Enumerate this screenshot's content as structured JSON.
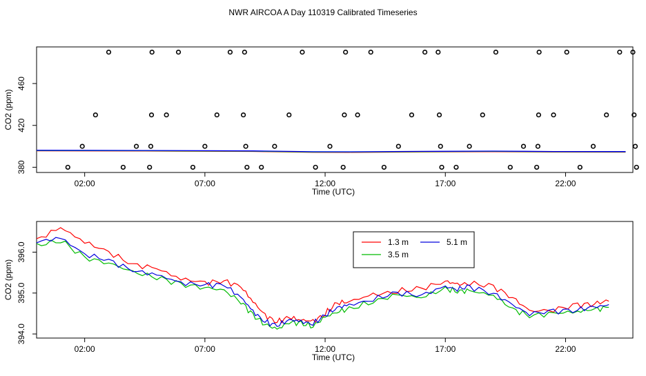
{
  "figure": {
    "title": "NWR AIRCOA A  Day 110319  Calibrated Timeseries"
  },
  "chart_data": [
    {
      "type": "scatter",
      "xlabel": "Time (UTC)",
      "ylabel": "CO2 (ppm)",
      "xlim": [
        0.0,
        24.8
      ],
      "ylim": [
        375,
        495
      ],
      "x_ticks": [
        2,
        7,
        12,
        17,
        22
      ],
      "x_tick_labels": [
        "02:00",
        "07:00",
        "12:00",
        "17:00",
        "22:00"
      ],
      "y_ticks": [
        380,
        420,
        460
      ],
      "y_tick_labels": [
        "380",
        "420",
        "460"
      ],
      "grid": false,
      "legend": "none",
      "points": [
        {
          "x": 1.3,
          "y": 380
        },
        {
          "x": 1.9,
          "y": 400
        },
        {
          "x": 2.45,
          "y": 430
        },
        {
          "x": 3.0,
          "y": 490
        },
        {
          "x": 3.6,
          "y": 380
        },
        {
          "x": 4.15,
          "y": 400
        },
        {
          "x": 4.7,
          "y": 380
        },
        {
          "x": 4.75,
          "y": 400
        },
        {
          "x": 4.78,
          "y": 430
        },
        {
          "x": 4.8,
          "y": 490
        },
        {
          "x": 5.4,
          "y": 430
        },
        {
          "x": 5.9,
          "y": 490
        },
        {
          "x": 6.5,
          "y": 380
        },
        {
          "x": 7.0,
          "y": 400
        },
        {
          "x": 7.5,
          "y": 430
        },
        {
          "x": 8.05,
          "y": 490
        },
        {
          "x": 8.6,
          "y": 430
        },
        {
          "x": 8.65,
          "y": 490
        },
        {
          "x": 8.7,
          "y": 400
        },
        {
          "x": 8.75,
          "y": 380
        },
        {
          "x": 9.35,
          "y": 380
        },
        {
          "x": 9.9,
          "y": 400
        },
        {
          "x": 10.5,
          "y": 430
        },
        {
          "x": 11.05,
          "y": 490
        },
        {
          "x": 11.6,
          "y": 380
        },
        {
          "x": 12.2,
          "y": 400
        },
        {
          "x": 12.75,
          "y": 380
        },
        {
          "x": 12.8,
          "y": 430
        },
        {
          "x": 12.85,
          "y": 490
        },
        {
          "x": 13.35,
          "y": 430
        },
        {
          "x": 13.9,
          "y": 490
        },
        {
          "x": 14.45,
          "y": 380
        },
        {
          "x": 15.05,
          "y": 400
        },
        {
          "x": 15.6,
          "y": 430
        },
        {
          "x": 16.15,
          "y": 490
        },
        {
          "x": 16.7,
          "y": 490
        },
        {
          "x": 16.75,
          "y": 430
        },
        {
          "x": 16.8,
          "y": 400
        },
        {
          "x": 16.85,
          "y": 380
        },
        {
          "x": 17.45,
          "y": 380
        },
        {
          "x": 18.0,
          "y": 400
        },
        {
          "x": 18.55,
          "y": 430
        },
        {
          "x": 19.1,
          "y": 490
        },
        {
          "x": 19.7,
          "y": 380
        },
        {
          "x": 20.25,
          "y": 400
        },
        {
          "x": 20.8,
          "y": 380
        },
        {
          "x": 20.85,
          "y": 400
        },
        {
          "x": 20.88,
          "y": 430
        },
        {
          "x": 20.9,
          "y": 490
        },
        {
          "x": 21.5,
          "y": 430
        },
        {
          "x": 22.05,
          "y": 490
        },
        {
          "x": 22.6,
          "y": 380
        },
        {
          "x": 23.15,
          "y": 400
        },
        {
          "x": 23.7,
          "y": 430
        },
        {
          "x": 24.25,
          "y": 490
        },
        {
          "x": 24.8,
          "y": 490
        },
        {
          "x": 24.85,
          "y": 430
        },
        {
          "x": 24.9,
          "y": 400
        },
        {
          "x": 24.95,
          "y": 380
        }
      ],
      "baseline": {
        "x": [
          0.0,
          4.5,
          9.0,
          11.5,
          13.0,
          16.0,
          19.0,
          21.5,
          24.5
        ],
        "y": [
          396.0,
          395.8,
          395.4,
          394.6,
          394.5,
          394.9,
          395.2,
          394.8,
          394.7
        ],
        "colors": [
          "#ff0000",
          "#00bb00",
          "#0000ff"
        ]
      }
    },
    {
      "type": "line",
      "xlabel": "Time (UTC)",
      "ylabel": "CO2 (ppm)",
      "xlim": [
        0.0,
        24.8
      ],
      "ylim": [
        393.9,
        396.75
      ],
      "x_ticks": [
        2,
        7,
        12,
        17,
        22
      ],
      "x_tick_labels": [
        "02:00",
        "07:00",
        "12:00",
        "17:00",
        "22:00"
      ],
      "y_ticks": [
        394.0,
        395.0,
        396.0
      ],
      "y_tick_labels": [
        "394.0",
        "395.0",
        "396.0"
      ],
      "grid": false,
      "legend": "top-center",
      "x": [
        0.0,
        1.0,
        2.0,
        3.0,
        4.0,
        5.0,
        6.0,
        7.0,
        7.8,
        8.5,
        9.0,
        9.5,
        10.0,
        10.5,
        11.0,
        11.5,
        12.0,
        12.5,
        13.0,
        14.0,
        15.0,
        16.0,
        17.0,
        17.5,
        18.0,
        19.0,
        19.8,
        20.5,
        21.5,
        22.5,
        23.2,
        23.8
      ],
      "series": [
        {
          "name": "1.3 m",
          "color": "#ff0000",
          "values": [
            396.3,
            396.6,
            396.25,
            396.0,
            395.7,
            395.6,
            395.35,
            395.25,
            395.3,
            395.15,
            394.8,
            394.45,
            394.3,
            394.4,
            394.35,
            394.3,
            394.5,
            394.75,
            394.8,
            394.95,
            395.05,
            395.1,
            395.3,
            395.2,
            395.25,
            395.15,
            394.9,
            394.55,
            394.6,
            394.7,
            394.75,
            394.8
          ]
        },
        {
          "name": "3.5 m",
          "color": "#00bb00",
          "values": [
            396.15,
            396.3,
            395.85,
            395.75,
            395.5,
            395.4,
            395.2,
            395.15,
            395.05,
            394.8,
            394.45,
            394.25,
            394.1,
            394.3,
            394.25,
            394.2,
            394.4,
            394.55,
            394.6,
            394.8,
            394.95,
            394.9,
            395.1,
            395.05,
            395.05,
            394.95,
            394.6,
            394.45,
            394.5,
            394.55,
            394.6,
            394.65
          ]
        },
        {
          "name": "5.1 m",
          "color": "#0000dd",
          "values": [
            396.25,
            396.35,
            395.95,
            395.8,
            395.55,
            395.45,
            395.25,
            395.2,
            395.2,
            394.9,
            394.55,
            394.3,
            394.2,
            394.35,
            394.3,
            394.25,
            394.45,
            394.65,
            394.7,
            394.85,
            395.0,
            394.95,
            395.15,
            395.1,
            395.15,
            395.0,
            394.7,
            394.5,
            394.55,
            394.6,
            394.65,
            394.72
          ]
        }
      ]
    }
  ]
}
